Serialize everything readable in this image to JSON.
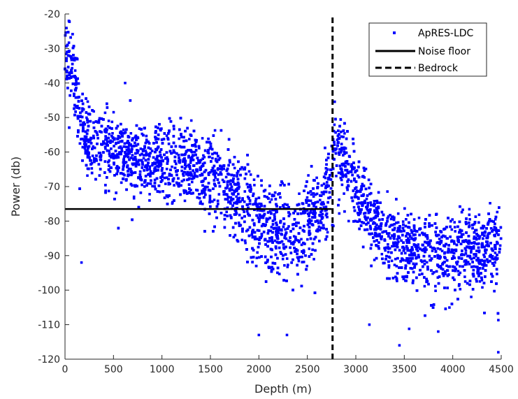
{
  "chart_data": {
    "type": "scatter",
    "title": "",
    "xlabel": "Depth (m)",
    "ylabel": "Power (db)",
    "xlim": [
      0,
      4500
    ],
    "ylim": [
      -120,
      -20
    ],
    "xticks": [
      0,
      500,
      1000,
      1500,
      2000,
      2500,
      3000,
      3500,
      4000,
      4500
    ],
    "yticks": [
      -120,
      -110,
      -100,
      -90,
      -80,
      -70,
      -60,
      -50,
      -40,
      -30,
      -20
    ],
    "grid": false,
    "legend_position": "top-right",
    "series": [
      {
        "name": "ApRES-LDC",
        "kind": "scatter",
        "color": "#0000ff",
        "marker": "square",
        "profile": [
          {
            "x": 0,
            "y_mid": -33,
            "spread": 5
          },
          {
            "x": 40,
            "y_mid": -31,
            "spread": 6
          },
          {
            "x": 80,
            "y_mid": -35,
            "spread": 6
          },
          {
            "x": 120,
            "y_mid": -43,
            "spread": 7
          },
          {
            "x": 160,
            "y_mid": -52,
            "spread": 6
          },
          {
            "x": 250,
            "y_mid": -58,
            "spread": 6
          },
          {
            "x": 500,
            "y_mid": -60,
            "spread": 6
          },
          {
            "x": 1000,
            "y_mid": -62,
            "spread": 6
          },
          {
            "x": 1500,
            "y_mid": -65,
            "spread": 6
          },
          {
            "x": 1800,
            "y_mid": -73,
            "spread": 7
          },
          {
            "x": 2100,
            "y_mid": -82,
            "spread": 7
          },
          {
            "x": 2400,
            "y_mid": -84,
            "spread": 7
          },
          {
            "x": 2600,
            "y_mid": -78,
            "spread": 6
          },
          {
            "x": 2740,
            "y_mid": -68,
            "spread": 6
          },
          {
            "x": 2780,
            "y_mid": -56,
            "spread": 5
          },
          {
            "x": 2900,
            "y_mid": -63,
            "spread": 5
          },
          {
            "x": 3100,
            "y_mid": -75,
            "spread": 6
          },
          {
            "x": 3300,
            "y_mid": -85,
            "spread": 6
          },
          {
            "x": 3600,
            "y_mid": -88,
            "spread": 6
          },
          {
            "x": 4000,
            "y_mid": -88,
            "spread": 6
          },
          {
            "x": 4500,
            "y_mid": -88,
            "spread": 6
          }
        ],
        "notable_points": [
          {
            "x": 40,
            "y": -22
          },
          {
            "x": 170,
            "y": -92
          },
          {
            "x": 620,
            "y": -40
          },
          {
            "x": 2290,
            "y": -113
          },
          {
            "x": 2000,
            "y": -113
          },
          {
            "x": 3450,
            "y": -116
          },
          {
            "x": 3850,
            "y": -112
          },
          {
            "x": 4470,
            "y": -118
          },
          {
            "x": 3140,
            "y": -110
          }
        ]
      },
      {
        "name": "Noise floor",
        "kind": "line",
        "style": "solid",
        "color": "#000000",
        "x": [
          0,
          2750
        ],
        "y": [
          -76.5,
          -76.5
        ]
      },
      {
        "name": "Bedrock",
        "kind": "line",
        "style": "dashed",
        "color": "#000000",
        "x": [
          2760,
          2760
        ],
        "y": [
          -120,
          -21
        ]
      }
    ]
  }
}
